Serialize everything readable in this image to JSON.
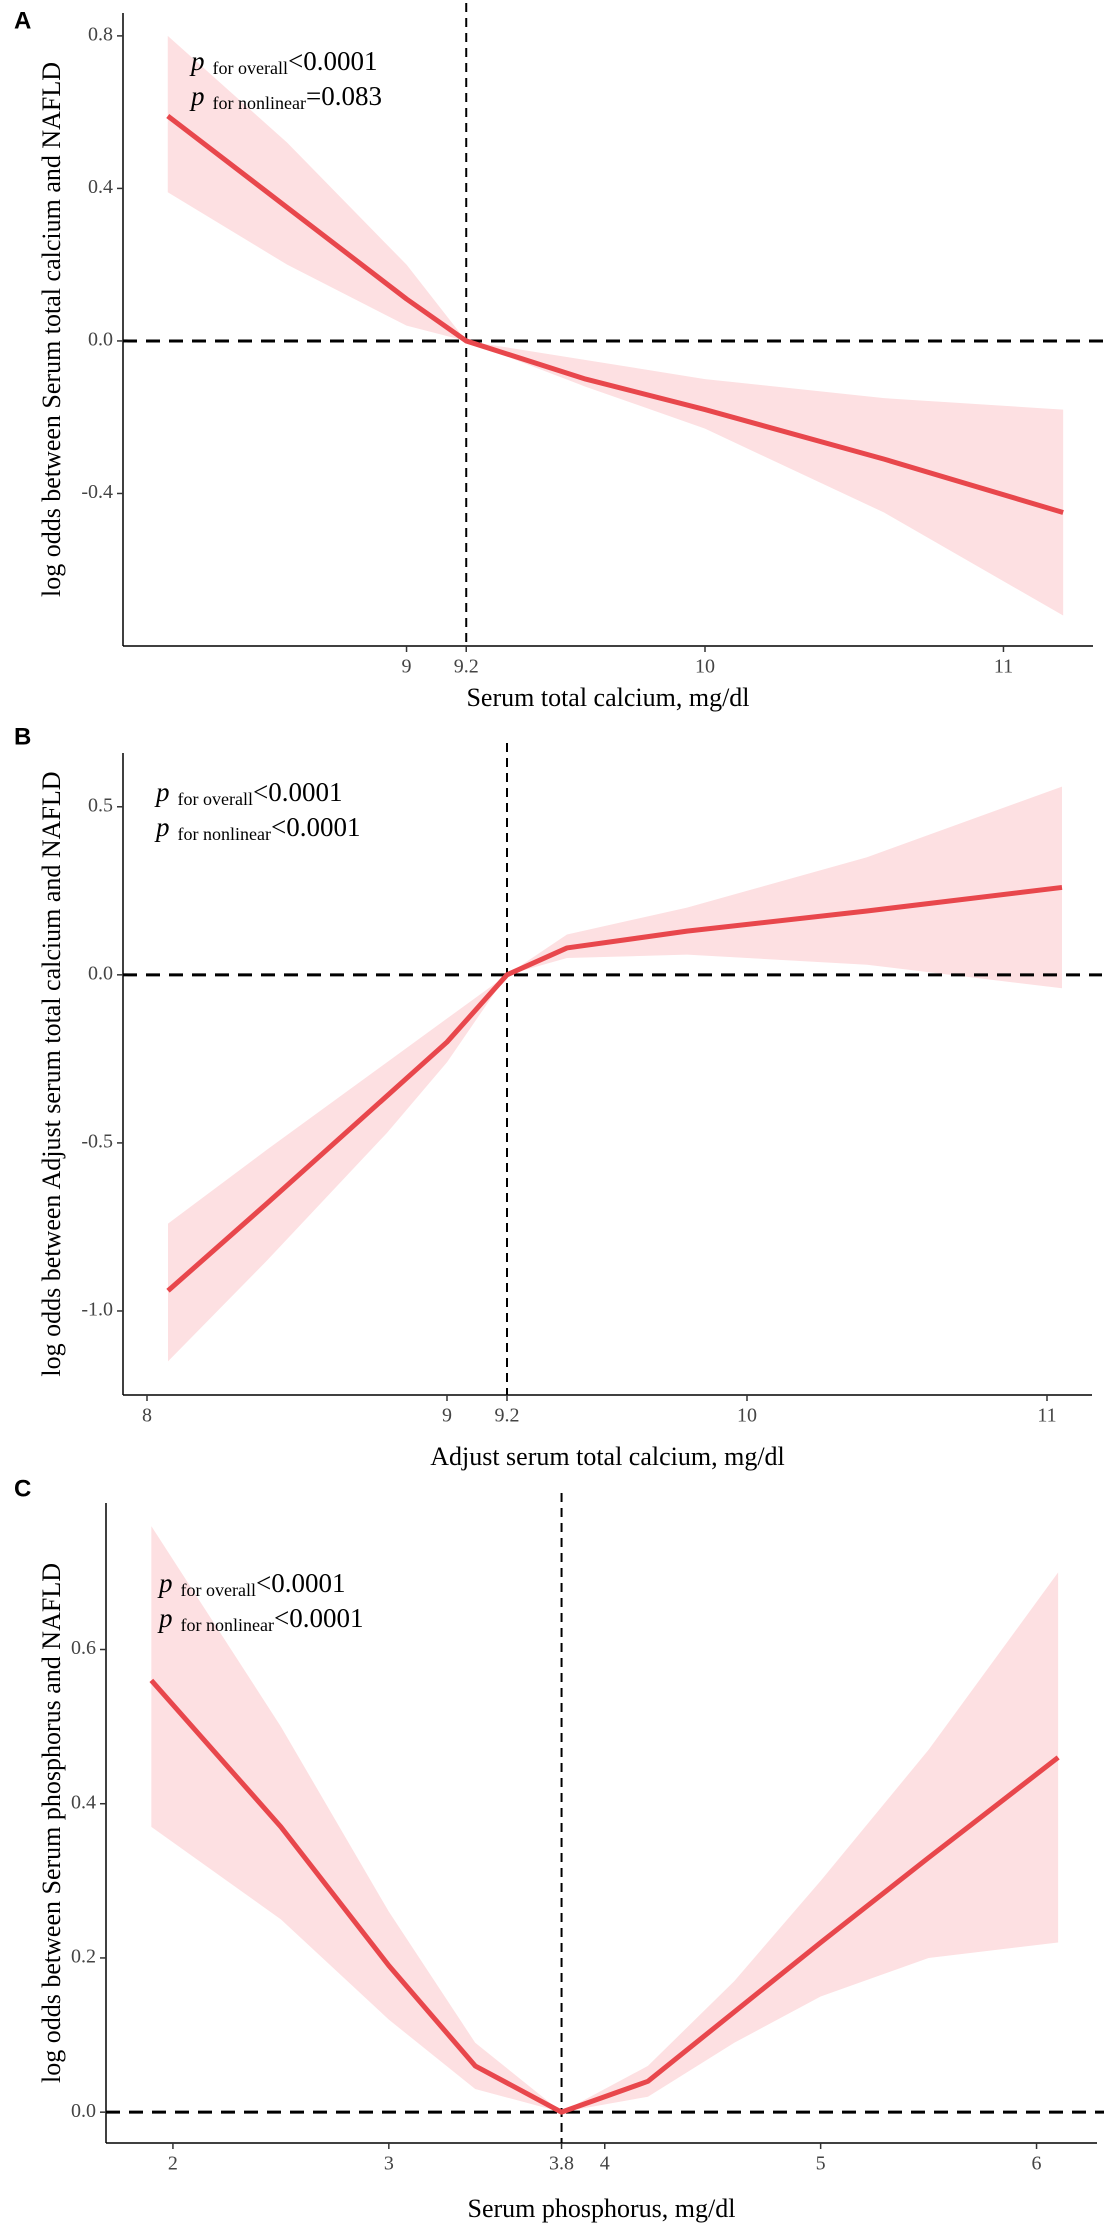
{
  "chart_data": [
    {
      "type": "line",
      "panel_label": "A",
      "x_label": "Serum total calcium, mg/dl",
      "y_label": "log odds between Serum total calcium and NAFLD",
      "annotations": [
        {
          "symbol": "p",
          "subscript": "for overall",
          "text": "<0.0001"
        },
        {
          "symbol": "p",
          "subscript": "for nonlinear",
          "text": "=0.083"
        }
      ],
      "x": [
        8.2,
        8.6,
        9.0,
        9.2,
        9.6,
        10.0,
        10.6,
        11.2
      ],
      "values": [
        0.59,
        0.35,
        0.11,
        0,
        -0.1,
        -0.18,
        -0.31,
        -0.45
      ],
      "upper": [
        0.8,
        0.52,
        0.2,
        0,
        -0.05,
        -0.1,
        -0.15,
        -0.18
      ],
      "lower": [
        0.39,
        0.2,
        0.04,
        0,
        -0.12,
        -0.23,
        -0.45,
        -0.72
      ],
      "color": "#e8474c",
      "band_color": "#fde0e2",
      "xlim": [
        8.05,
        11.3
      ],
      "xticks": [
        9,
        9.2,
        10,
        11
      ],
      "ylim": [
        -0.8,
        0.86
      ],
      "yticks": [
        0.8,
        0.4,
        {
          "value": 0,
          "label": "0.0"
        },
        -0.4
      ],
      "vline": 9.2,
      "hline": 0
    },
    {
      "type": "line",
      "panel_label": "B",
      "x_label": "Adjust serum total calcium, mg/dl",
      "y_label": "log odds between Adjust serum total calcium and NAFLD",
      "annotations": [
        {
          "symbol": "p",
          "subscript": "for overall",
          "text": "<0.0001"
        },
        {
          "symbol": "p",
          "subscript": "for nonlinear",
          "text": "<0.0001"
        }
      ],
      "x": [
        8.07,
        8.4,
        8.8,
        9.0,
        9.2,
        9.4,
        9.8,
        10.4,
        11.05
      ],
      "values": [
        -0.94,
        -0.68,
        -0.36,
        -0.2,
        0,
        0.08,
        0.13,
        0.19,
        0.26
      ],
      "upper": [
        -0.74,
        -0.52,
        -0.26,
        -0.13,
        0,
        0.12,
        0.2,
        0.35,
        0.56
      ],
      "lower": [
        -1.15,
        -0.85,
        -0.47,
        -0.26,
        0,
        0.05,
        0.06,
        0.03,
        -0.04
      ],
      "color": "#e8474c",
      "band_color": "#fde0e2",
      "xlim": [
        7.92,
        11.15
      ],
      "xticks": [
        8,
        9,
        9.2,
        10,
        11
      ],
      "ylim": [
        -1.25,
        0.66
      ],
      "yticks": [
        0.5,
        {
          "value": 0,
          "label": "0.0"
        },
        -0.5,
        {
          "value": -1,
          "label": "-1.0"
        }
      ],
      "vline": 9.2,
      "hline": 0
    },
    {
      "type": "line",
      "panel_label": "C",
      "x_label": "Serum phosphorus, mg/dl",
      "y_label": "log odds between Serum phosphorus and NAFLD",
      "annotations": [
        {
          "symbol": "p",
          "subscript": "for overall",
          "text": "<0.0001"
        },
        {
          "symbol": "p",
          "subscript": "for nonlinear",
          "text": "<0.0001"
        }
      ],
      "x": [
        1.9,
        2.5,
        3.0,
        3.4,
        3.8,
        4.2,
        4.6,
        5.0,
        5.5,
        6.1
      ],
      "values": [
        0.56,
        0.37,
        0.19,
        0.06,
        0,
        0.04,
        0.13,
        0.22,
        0.33,
        0.46
      ],
      "upper": [
        0.76,
        0.5,
        0.26,
        0.09,
        0,
        0.06,
        0.17,
        0.3,
        0.47,
        0.7
      ],
      "lower": [
        0.37,
        0.25,
        0.12,
        0.03,
        0,
        0.02,
        0.09,
        0.15,
        0.2,
        0.22
      ],
      "color": "#e8474c",
      "band_color": "#fde0e2",
      "xlim": [
        1.69,
        6.28
      ],
      "xticks": [
        2,
        3,
        3.8,
        4,
        5,
        6
      ],
      "ylim": [
        -0.04,
        0.79
      ],
      "yticks": [
        {
          "value": 0,
          "label": "0.0"
        },
        0.2,
        0.4,
        0.6
      ],
      "vline": 3.8,
      "hline": 0
    }
  ]
}
